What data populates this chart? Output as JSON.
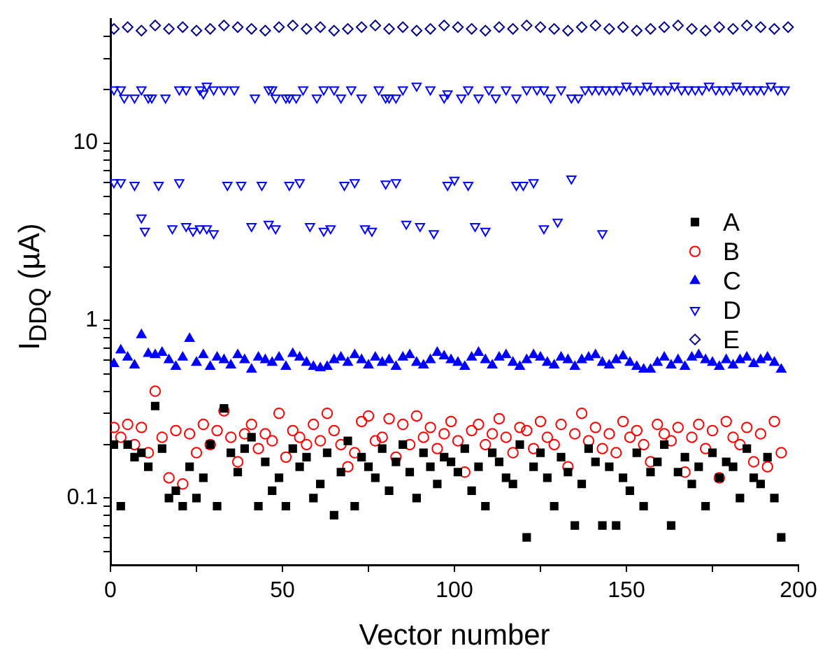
{
  "chart_data": {
    "type": "scatter",
    "xlabel": "Vector number",
    "ylabel": "I$_{DDQ}$ (µA)",
    "log": "y",
    "legend": "right",
    "grid": false,
    "xlim": [
      0,
      200
    ],
    "xticks": [
      0,
      {
        "value": 25,
        "label": null
      },
      50,
      {
        "value": 75,
        "label": null
      },
      100,
      {
        "value": 125,
        "label": null
      },
      150,
      {
        "value": 175,
        "label": null
      },
      200
    ],
    "ylim": [
      0.042,
      50
    ],
    "yticks": [
      {
        "value": 0.05,
        "label": null
      },
      {
        "value": 0.06,
        "label": null
      },
      {
        "value": 0.07,
        "label": null
      },
      {
        "value": 0.08,
        "label": null
      },
      {
        "value": 0.09,
        "label": null
      },
      0.1,
      {
        "value": 0.2,
        "label": null
      },
      {
        "value": 0.3,
        "label": null
      },
      {
        "value": 0.4,
        "label": null
      },
      {
        "value": 0.5,
        "label": null
      },
      {
        "value": 0.6,
        "label": null
      },
      {
        "value": 0.7,
        "label": null
      },
      {
        "value": 0.8,
        "label": null
      },
      {
        "value": 0.9,
        "label": null
      },
      1,
      {
        "value": 2,
        "label": null
      },
      {
        "value": 3,
        "label": null
      },
      {
        "value": 4,
        "label": null
      },
      {
        "value": 5,
        "label": null
      },
      {
        "value": 6,
        "label": null
      },
      {
        "value": 7,
        "label": null
      },
      {
        "value": 8,
        "label": null
      },
      {
        "value": 9,
        "label": null
      },
      10,
      {
        "value": 20,
        "label": null
      },
      {
        "value": 30,
        "label": null
      },
      {
        "value": 40,
        "label": null
      }
    ],
    "x": [
      1,
      3,
      5,
      7,
      9,
      11,
      13,
      15,
      17,
      19,
      21,
      23,
      25,
      27,
      29,
      31,
      33,
      35,
      37,
      39,
      41,
      43,
      45,
      47,
      49,
      51,
      53,
      55,
      57,
      59,
      61,
      63,
      65,
      67,
      69,
      71,
      73,
      75,
      77,
      79,
      81,
      83,
      85,
      87,
      89,
      91,
      93,
      95,
      97,
      99,
      101,
      103,
      105,
      107,
      109,
      111,
      113,
      115,
      117,
      119,
      121,
      123,
      125,
      127,
      129,
      131,
      133,
      135,
      137,
      139,
      141,
      143,
      145,
      147,
      149,
      151,
      153,
      155,
      157,
      159,
      161,
      163,
      165,
      167,
      169,
      171,
      173,
      175,
      177,
      179,
      181,
      183,
      185,
      187,
      189,
      191,
      193,
      195
    ],
    "series": [
      {
        "name": "A",
        "color": "#000000",
        "marker": "square",
        "values": [
          0.2,
          0.09,
          0.2,
          0.17,
          0.18,
          0.15,
          0.33,
          0.19,
          0.1,
          0.11,
          0.09,
          0.15,
          0.1,
          0.13,
          0.2,
          0.09,
          0.32,
          0.18,
          0.14,
          0.19,
          0.22,
          0.09,
          0.16,
          0.11,
          0.13,
          0.09,
          0.19,
          0.15,
          0.17,
          0.1,
          0.12,
          0.18,
          0.08,
          0.14,
          0.21,
          0.09,
          0.17,
          0.15,
          0.13,
          0.19,
          0.11,
          0.16,
          0.2,
          0.14,
          0.1,
          0.18,
          0.15,
          0.12,
          0.17,
          0.16,
          0.14,
          0.19,
          0.11,
          0.15,
          0.09,
          0.18,
          0.16,
          0.13,
          0.12,
          0.2,
          0.06,
          0.15,
          0.18,
          0.13,
          0.09,
          0.17,
          0.14,
          0.07,
          0.12,
          0.19,
          0.16,
          0.07,
          0.15,
          0.07,
          0.13,
          0.11,
          0.18,
          0.09,
          0.14,
          0.16,
          0.2,
          0.07,
          0.14,
          0.17,
          0.12,
          0.15,
          0.09,
          0.18,
          0.13,
          0.16,
          0.15,
          0.1,
          0.19,
          0.13,
          0.12,
          0.17,
          0.1,
          0.06
        ]
      },
      {
        "name": "B",
        "color": "#ff0000",
        "marker": "circle",
        "values": [
          0.25,
          0.22,
          0.26,
          0.2,
          0.25,
          0.18,
          0.4,
          0.22,
          0.13,
          0.24,
          0.12,
          0.23,
          0.18,
          0.26,
          0.2,
          0.24,
          0.31,
          0.22,
          0.16,
          0.23,
          0.26,
          0.19,
          0.23,
          0.21,
          0.3,
          0.17,
          0.24,
          0.22,
          0.2,
          0.26,
          0.21,
          0.3,
          0.24,
          0.2,
          0.15,
          0.18,
          0.27,
          0.29,
          0.21,
          0.22,
          0.28,
          0.17,
          0.26,
          0.2,
          0.29,
          0.22,
          0.25,
          0.19,
          0.23,
          0.27,
          0.21,
          0.14,
          0.24,
          0.26,
          0.2,
          0.23,
          0.28,
          0.22,
          0.18,
          0.25,
          0.24,
          0.19,
          0.27,
          0.22,
          0.2,
          0.26,
          0.15,
          0.23,
          0.3,
          0.21,
          0.25,
          0.19,
          0.23,
          0.18,
          0.27,
          0.22,
          0.24,
          0.2,
          0.16,
          0.26,
          0.23,
          0.21,
          0.25,
          0.14,
          0.22,
          0.26,
          0.19,
          0.24,
          0.13,
          0.27,
          0.22,
          0.2,
          0.25,
          0.16,
          0.23,
          0.15,
          0.27,
          0.18
        ]
      },
      {
        "name": "C",
        "color": "#0000ff",
        "marker": "triangle",
        "values": [
          0.57,
          0.68,
          0.62,
          0.56,
          0.83,
          0.65,
          0.64,
          0.66,
          0.6,
          0.55,
          0.62,
          0.79,
          0.58,
          0.64,
          0.55,
          0.62,
          0.6,
          0.56,
          0.64,
          0.6,
          0.53,
          0.62,
          0.6,
          0.58,
          0.62,
          0.55,
          0.65,
          0.62,
          0.58,
          0.55,
          0.54,
          0.55,
          0.6,
          0.62,
          0.58,
          0.64,
          0.6,
          0.56,
          0.62,
          0.58,
          0.6,
          0.55,
          0.62,
          0.64,
          0.58,
          0.56,
          0.6,
          0.66,
          0.63,
          0.6,
          0.58,
          0.55,
          0.62,
          0.66,
          0.6,
          0.56,
          0.62,
          0.64,
          0.58,
          0.55,
          0.6,
          0.64,
          0.62,
          0.58,
          0.56,
          0.62,
          0.6,
          0.55,
          0.6,
          0.62,
          0.64,
          0.58,
          0.56,
          0.6,
          0.63,
          0.58,
          0.55,
          0.53,
          0.53,
          0.58,
          0.62,
          0.56,
          0.6,
          0.55,
          0.62,
          0.64,
          0.6,
          0.58,
          0.55,
          0.6,
          0.56,
          0.6,
          0.62,
          0.57,
          0.6,
          0.62,
          0.58,
          0.53
        ]
      },
      {
        "name": "D",
        "color": "#0000ff",
        "marker": "triangle_down",
        "x": [
          1,
          3,
          4,
          7,
          9,
          11,
          12,
          16,
          20,
          22,
          26,
          27,
          28,
          30,
          33,
          36,
          42,
          46,
          47,
          48,
          51,
          52,
          54,
          56,
          60,
          62,
          65,
          67,
          70,
          73,
          78,
          80,
          81,
          83,
          85,
          89,
          93,
          97,
          98,
          102,
          104,
          107,
          110,
          112,
          115,
          118,
          121,
          124,
          126,
          128,
          131,
          134,
          136,
          138,
          140,
          142,
          144,
          146,
          148,
          150,
          152,
          154,
          156,
          158,
          160,
          162,
          164,
          166,
          168,
          170,
          172,
          174,
          176,
          178,
          180,
          182,
          184,
          186,
          188,
          190,
          192,
          194,
          196,
          1,
          3,
          7,
          9,
          10,
          14,
          18,
          20,
          22,
          24,
          26,
          28,
          30,
          34,
          38,
          41,
          44,
          46,
          48,
          52,
          55,
          58,
          62,
          64,
          68,
          71,
          74,
          76,
          80,
          83,
          86,
          90,
          94,
          98,
          100,
          104,
          106,
          109,
          118,
          120,
          123,
          126,
          130,
          134,
          143
        ],
        "values": [
          20,
          20,
          18,
          18,
          20,
          18,
          18,
          18,
          20,
          20,
          20,
          19,
          21,
          20,
          20,
          20,
          18,
          20,
          20,
          18,
          18,
          18,
          18,
          20,
          18,
          20,
          20,
          18,
          20,
          18,
          20,
          18,
          18,
          18,
          20,
          21,
          20,
          18,
          19,
          18,
          20,
          18,
          20,
          18,
          20,
          18,
          20,
          20,
          20,
          18,
          20,
          18,
          18,
          20,
          20,
          20,
          20,
          20,
          20,
          21,
          20,
          20,
          21,
          20,
          20,
          20,
          21,
          20,
          20,
          20,
          20,
          21,
          20,
          20,
          20,
          21,
          20,
          20,
          20,
          20,
          21,
          20,
          20,
          6,
          6,
          5.8,
          3.8,
          3.2,
          5.8,
          3.3,
          6,
          3.4,
          3.2,
          3.3,
          3.3,
          3.1,
          5.8,
          5.8,
          3.4,
          5.8,
          3.5,
          3.3,
          5.8,
          6,
          3.4,
          3.2,
          3.3,
          5.8,
          6,
          3.3,
          3.2,
          5.9,
          6,
          3.5,
          3.4,
          3.1,
          5.8,
          6.2,
          5.8,
          3.4,
          3.2,
          5.8,
          5.8,
          6,
          3.3,
          3.6,
          6.3,
          3.1
        ]
      },
      {
        "name": "E",
        "color": "#00008b",
        "marker": "diamond",
        "x": [
          1,
          5,
          9,
          13,
          17,
          21,
          25,
          29,
          33,
          37,
          41,
          45,
          49,
          53,
          57,
          61,
          65,
          69,
          73,
          77,
          81,
          85,
          89,
          93,
          97,
          101,
          105,
          109,
          113,
          117,
          121,
          125,
          129,
          133,
          137,
          141,
          145,
          149,
          153,
          157,
          161,
          165,
          169,
          173,
          177,
          181,
          185,
          189,
          193,
          197
        ],
        "values": [
          44,
          45,
          43,
          46,
          44,
          45,
          43,
          44,
          46,
          45,
          44,
          43,
          45,
          46,
          44,
          45,
          43,
          44,
          45,
          46,
          44,
          45,
          43,
          44,
          46,
          45,
          44,
          43,
          45,
          44,
          46,
          45,
          44,
          43,
          45,
          46,
          44,
          45,
          43,
          44,
          45,
          46,
          44,
          43,
          45,
          44,
          46,
          45,
          44,
          45
        ]
      }
    ]
  }
}
